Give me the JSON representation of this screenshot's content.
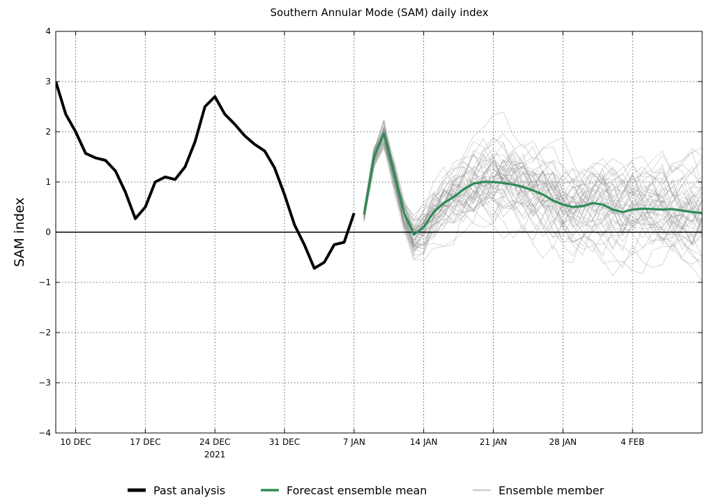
{
  "chart_data": {
    "type": "line",
    "title": "Southern Annular Mode (SAM) daily index",
    "xlabel": "",
    "ylabel": "SAM index",
    "ylim": [
      -4,
      4
    ],
    "yticks": [
      -4,
      -3,
      -2,
      -1,
      0,
      1,
      2,
      3,
      4
    ],
    "xlim": [
      "2021-12-08",
      "2022-02-11"
    ],
    "xticks": [
      {
        "date": "2021-12-10",
        "label": "10 DEC"
      },
      {
        "date": "2021-12-17",
        "label": "17 DEC"
      },
      {
        "date": "2021-12-24",
        "label": "24 DEC",
        "sublabel": "2021"
      },
      {
        "date": "2021-12-31",
        "label": "31 DEC"
      },
      {
        "date": "2022-01-07",
        "label": "7 JAN"
      },
      {
        "date": "2022-01-14",
        "label": "14 JAN"
      },
      {
        "date": "2022-01-21",
        "label": "21 JAN"
      },
      {
        "date": "2022-01-28",
        "label": "28 JAN"
      },
      {
        "date": "2022-02-04",
        "label": "4 FEB"
      }
    ],
    "grid": true,
    "zero_line": true,
    "legend_position": "bottom",
    "series": [
      {
        "name": "Past analysis",
        "color": "#000000",
        "x": [
          "2021-12-08",
          "2021-12-09",
          "2021-12-10",
          "2021-12-11",
          "2021-12-12",
          "2021-12-13",
          "2021-12-14",
          "2021-12-15",
          "2021-12-16",
          "2021-12-17",
          "2021-12-18",
          "2021-12-19",
          "2021-12-20",
          "2021-12-21",
          "2021-12-22",
          "2021-12-23",
          "2021-12-24",
          "2021-12-25",
          "2021-12-26",
          "2021-12-27",
          "2021-12-28",
          "2021-12-29",
          "2021-12-30",
          "2021-12-31",
          "2022-01-01",
          "2022-01-02",
          "2022-01-03",
          "2022-01-04",
          "2022-01-05",
          "2022-01-06",
          "2022-01-07"
        ],
        "y": [
          3.0,
          2.35,
          2.0,
          1.57,
          1.48,
          1.43,
          1.22,
          0.8,
          0.27,
          0.5,
          1.0,
          1.1,
          1.05,
          1.3,
          1.8,
          2.5,
          2.7,
          2.35,
          2.15,
          1.92,
          1.75,
          1.62,
          1.28,
          0.75,
          0.15,
          -0.25,
          -0.72,
          -0.6,
          -0.25,
          -0.2,
          0.38
        ]
      },
      {
        "name": "Forecast ensemble mean",
        "color": "#2e8b57",
        "x": [
          "2022-01-08",
          "2022-01-09",
          "2022-01-10",
          "2022-01-11",
          "2022-01-12",
          "2022-01-13",
          "2022-01-14",
          "2022-01-15",
          "2022-01-16",
          "2022-01-17",
          "2022-01-18",
          "2022-01-19",
          "2022-01-20",
          "2022-01-21",
          "2022-01-22",
          "2022-01-23",
          "2022-01-24",
          "2022-01-25",
          "2022-01-26",
          "2022-01-27",
          "2022-01-28",
          "2022-01-29",
          "2022-01-30",
          "2022-01-31",
          "2022-02-01",
          "2022-02-02",
          "2022-02-03",
          "2022-02-04",
          "2022-02-05",
          "2022-02-06",
          "2022-02-07",
          "2022-02-08",
          "2022-02-09",
          "2022-02-10",
          "2022-02-11"
        ],
        "y": [
          0.35,
          1.5,
          1.97,
          1.2,
          0.4,
          -0.05,
          0.1,
          0.4,
          0.58,
          0.7,
          0.85,
          0.97,
          1.0,
          1.0,
          0.98,
          0.95,
          0.9,
          0.83,
          0.75,
          0.63,
          0.55,
          0.5,
          0.52,
          0.58,
          0.55,
          0.45,
          0.4,
          0.45,
          0.47,
          0.46,
          0.45,
          0.46,
          0.43,
          0.4,
          0.38
        ]
      }
    ],
    "ensemble_members": {
      "name": "Ensemble member",
      "color": "#8c8c8c",
      "count": 51,
      "start_date": "2022-01-08",
      "days": 35
    }
  }
}
